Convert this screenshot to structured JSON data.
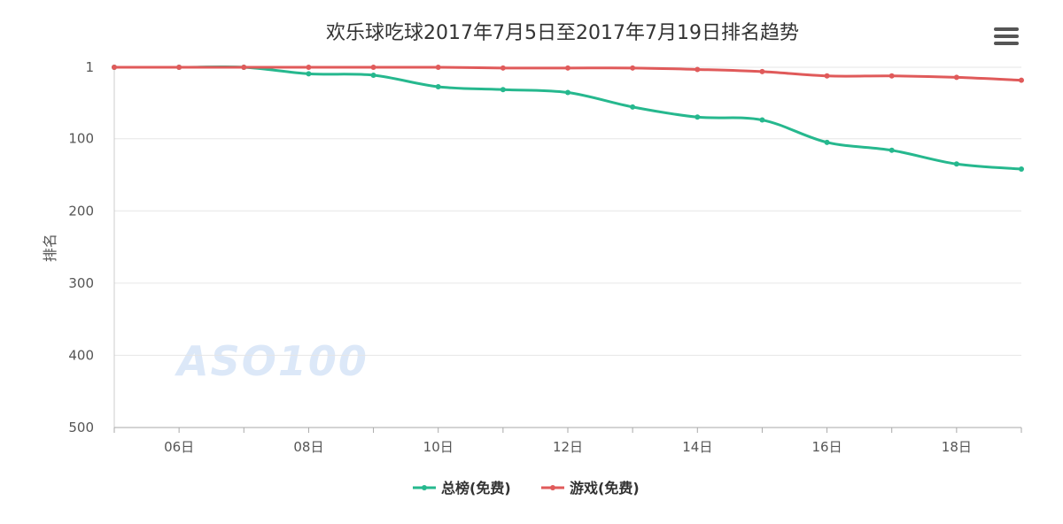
{
  "chart_data": {
    "type": "line",
    "title": "欢乐球吃球2017年7月5日至2017年7月19日排名趋势",
    "ylabel": "排名",
    "xlabel": "",
    "x": [
      5,
      6,
      7,
      8,
      9,
      10,
      11,
      12,
      13,
      14,
      15,
      16,
      17,
      18,
      19
    ],
    "x_tick_labels": [
      {
        "day": 6,
        "label": "06日"
      },
      {
        "day": 8,
        "label": "08日"
      },
      {
        "day": 10,
        "label": "10日"
      },
      {
        "day": 12,
        "label": "12日"
      },
      {
        "day": 14,
        "label": "14日"
      },
      {
        "day": 16,
        "label": "16日"
      },
      {
        "day": 18,
        "label": "18日"
      }
    ],
    "y_ticks": [
      1,
      100,
      200,
      300,
      400,
      500
    ],
    "ylim": [
      1,
      500
    ],
    "y_reversed": true,
    "grid": true,
    "legend_position": "bottom-center",
    "series": [
      {
        "name": "总榜(免费)",
        "color": "#26b88e",
        "values": [
          1,
          1,
          1,
          10,
          12,
          28,
          32,
          36,
          56,
          70,
          74,
          105,
          116,
          135,
          142
        ]
      },
      {
        "name": "游戏(免费)",
        "color": "#e05a5a",
        "values": [
          1,
          1,
          1,
          1,
          1,
          1,
          2,
          2,
          2,
          4,
          7,
          13,
          13,
          15,
          19
        ]
      }
    ]
  },
  "watermark": "ASO100",
  "menu_icon": "hamburger-menu-icon"
}
